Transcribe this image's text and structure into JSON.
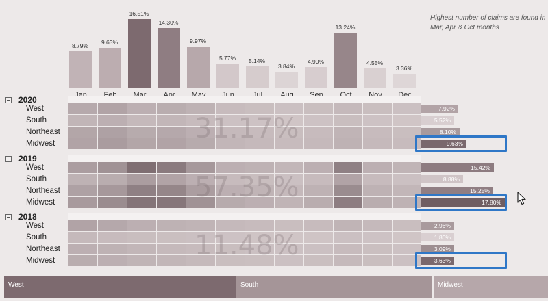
{
  "note": "Highest number of claims are found in Mar, Apr & Oct months",
  "months": [
    {
      "label": "Jan",
      "value": 8.79,
      "pct": "8.79%",
      "color": "#c1b3b6"
    },
    {
      "label": "Feb",
      "value": 9.63,
      "pct": "9.63%",
      "color": "#bcadb0"
    },
    {
      "label": "Mar",
      "value": 16.51,
      "pct": "16.51%",
      "color": "#7d6a6f"
    },
    {
      "label": "Apr",
      "value": 14.3,
      "pct": "14.30%",
      "color": "#8f7d82"
    },
    {
      "label": "May",
      "value": 9.97,
      "pct": "9.97%",
      "color": "#b7a8ab"
    },
    {
      "label": "Jun",
      "value": 5.77,
      "pct": "5.77%",
      "color": "#d3c8ca"
    },
    {
      "label": "Jul",
      "value": 5.14,
      "pct": "5.14%",
      "color": "#d6cccd"
    },
    {
      "label": "Aug",
      "value": 3.84,
      "pct": "3.84%",
      "color": "#dcd4d5"
    },
    {
      "label": "Sep",
      "value": 4.9,
      "pct": "4.90%",
      "color": "#d7cdcf"
    },
    {
      "label": "Oct",
      "value": 13.24,
      "pct": "13.24%",
      "color": "#97868a"
    },
    {
      "label": "Nov",
      "value": 4.55,
      "pct": "4.55%",
      "color": "#d9d0d1"
    },
    {
      "label": "Dec",
      "value": 3.36,
      "pct": "3.36%",
      "color": "#ded6d7"
    }
  ],
  "years": [
    {
      "year": "2020",
      "total_pct": "31.17%",
      "regions": [
        {
          "name": "West",
          "value": 7.92,
          "pct": "7.92%",
          "color": "#b2a3a6",
          "highlighted": false
        },
        {
          "name": "South",
          "value": 5.52,
          "pct": "5.52%",
          "color": "#d8ced0",
          "highlighted": false
        },
        {
          "name": "Northeast",
          "value": 8.1,
          "pct": "8.10%",
          "color": "#a89a9d",
          "highlighted": false
        },
        {
          "name": "Midwest",
          "value": 9.63,
          "pct": "9.63%",
          "color": "#7a686d",
          "highlighted": true
        }
      ]
    },
    {
      "year": "2019",
      "total_pct": "57.35%",
      "regions": [
        {
          "name": "West",
          "value": 15.42,
          "pct": "15.42%",
          "color": "#8d7b80",
          "highlighted": false
        },
        {
          "name": "South",
          "value": 8.88,
          "pct": "8.88%",
          "color": "#cfc4c6",
          "highlighted": false
        },
        {
          "name": "Northeast",
          "value": 15.25,
          "pct": "15.25%",
          "color": "#907e83",
          "highlighted": false
        },
        {
          "name": "Midwest",
          "value": 17.8,
          "pct": "17.80%",
          "color": "#6f5d62",
          "highlighted": true
        }
      ]
    },
    {
      "year": "2018",
      "total_pct": "11.48%",
      "regions": [
        {
          "name": "West",
          "value": 2.96,
          "pct": "2.96%",
          "color": "#a99a9d",
          "highlighted": false
        },
        {
          "name": "South",
          "value": 1.8,
          "pct": "1.80%",
          "color": "#d9cfd1",
          "highlighted": false
        },
        {
          "name": "Northeast",
          "value": 3.09,
          "pct": "3.09%",
          "color": "#9d8e91",
          "highlighted": false
        },
        {
          "name": "Midwest",
          "value": 3.63,
          "pct": "3.63%",
          "color": "#7a686d",
          "highlighted": true
        }
      ]
    }
  ],
  "heatmap_intensity": {
    "2020": [
      [
        0.35,
        0.4,
        0.3,
        0.32,
        0.28,
        0.2,
        0.18,
        0.16,
        0.18,
        0.22,
        0.18,
        0.16
      ],
      [
        0.25,
        0.3,
        0.22,
        0.24,
        0.2,
        0.15,
        0.14,
        0.12,
        0.14,
        0.18,
        0.14,
        0.12
      ],
      [
        0.38,
        0.42,
        0.34,
        0.36,
        0.3,
        0.22,
        0.2,
        0.18,
        0.2,
        0.26,
        0.2,
        0.18
      ],
      [
        0.4,
        0.46,
        0.38,
        0.4,
        0.34,
        0.24,
        0.22,
        0.2,
        0.22,
        0.28,
        0.22,
        0.2
      ]
    ],
    "2019": [
      [
        0.45,
        0.55,
        0.85,
        0.75,
        0.5,
        0.3,
        0.28,
        0.24,
        0.3,
        0.7,
        0.3,
        0.26
      ],
      [
        0.28,
        0.32,
        0.45,
        0.4,
        0.3,
        0.2,
        0.18,
        0.16,
        0.2,
        0.4,
        0.2,
        0.16
      ],
      [
        0.42,
        0.5,
        0.7,
        0.65,
        0.45,
        0.3,
        0.26,
        0.22,
        0.28,
        0.6,
        0.28,
        0.24
      ],
      [
        0.48,
        0.6,
        0.8,
        0.78,
        0.55,
        0.34,
        0.3,
        0.26,
        0.32,
        0.72,
        0.32,
        0.28
      ]
    ],
    "2018": [
      [
        0.4,
        0.36,
        0.3,
        0.28,
        0.26,
        0.22,
        0.2,
        0.18,
        0.2,
        0.26,
        0.22,
        0.18
      ],
      [
        0.22,
        0.2,
        0.18,
        0.17,
        0.16,
        0.14,
        0.13,
        0.12,
        0.13,
        0.16,
        0.14,
        0.12
      ],
      [
        0.3,
        0.28,
        0.24,
        0.22,
        0.2,
        0.18,
        0.16,
        0.15,
        0.16,
        0.2,
        0.17,
        0.15
      ],
      [
        0.32,
        0.3,
        0.26,
        0.24,
        0.22,
        0.18,
        0.17,
        0.16,
        0.17,
        0.22,
        0.18,
        0.16
      ]
    ]
  },
  "slicer": [
    {
      "label": "West",
      "color": "#7d6a6f"
    },
    {
      "label": "South",
      "color": "#a59598"
    },
    {
      "label": "Midwest",
      "color": "#b6a7aa"
    }
  ]
}
